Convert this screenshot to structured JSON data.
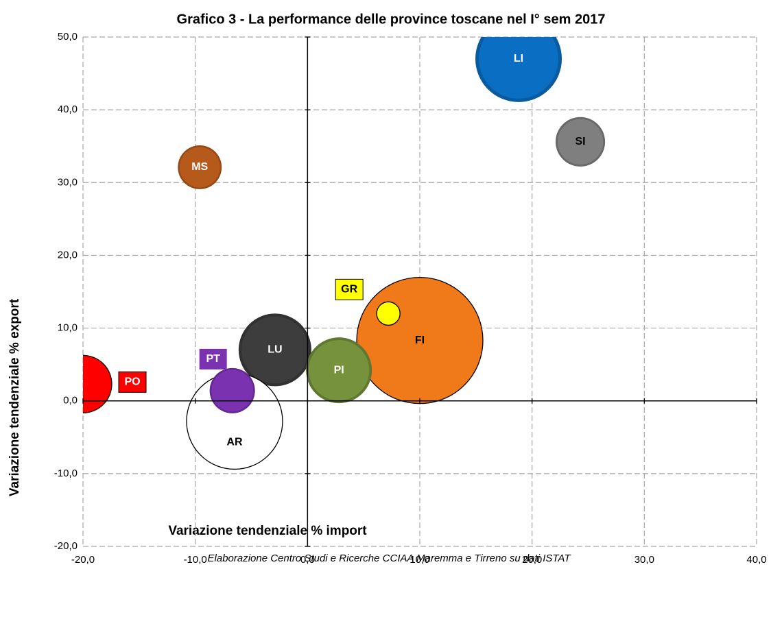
{
  "chart_data": {
    "type": "bubble",
    "title": "Grafico 3 - La performance delle province toscane nel I° sem 2017",
    "x_label": "Variazione tendenziale % import",
    "y_label": "Variazione tendenziale % export",
    "note": "Elaborazione Centro Studi e Ricerche CCIAA Maremma e Tirreno su dati ISTAT",
    "categories": [
      "LI",
      "SI",
      "MS",
      "FI",
      "GR",
      "LU",
      "PI",
      "AR",
      "PT",
      "PO"
    ],
    "x": [
      18.8,
      24.3,
      -9.6,
      10.0,
      7.2,
      -2.9,
      2.8,
      -6.5,
      -6.7,
      -20.0
    ],
    "values": [
      47.0,
      35.6,
      32.1,
      8.3,
      12.0,
      7.0,
      4.2,
      -2.8,
      1.4,
      2.3
    ],
    "sizes": [
      39.7,
      13.0,
      10.2,
      84.6,
      2.9,
      28.1,
      23.0,
      49.0,
      10.9,
      17.6
    ],
    "colors": [
      "#0a6fc2",
      "#7f7f7f",
      "#b65a1c",
      "#f07a1a",
      "#ffff00",
      "#3d3d3d",
      "#76923c",
      "#ffffff",
      "#7a32b0",
      "#ff0000"
    ],
    "xlim": [
      -20,
      40
    ],
    "ylim": [
      -20,
      50
    ],
    "xticks": [
      {
        "value": -20,
        "label": "-20,0"
      },
      {
        "value": -10,
        "label": "-10,0"
      },
      {
        "value": 0,
        "label": "0,0"
      },
      {
        "value": 10,
        "label": "10,0"
      },
      {
        "value": 20,
        "label": "20,0"
      },
      {
        "value": 30,
        "label": "30,0"
      },
      {
        "value": 40,
        "label": "40,0"
      }
    ],
    "yticks": [
      {
        "value": -20,
        "label": "-20,0"
      },
      {
        "value": -10,
        "label": "-10,0"
      },
      {
        "value": 0,
        "label": "0,0"
      },
      {
        "value": 10,
        "label": "10,0"
      },
      {
        "value": 20,
        "label": "20,0"
      },
      {
        "value": 30,
        "label": "30,0"
      },
      {
        "value": 40,
        "label": "40,0"
      },
      {
        "value": 50,
        "label": "50,0"
      }
    ],
    "grid": true
  }
}
